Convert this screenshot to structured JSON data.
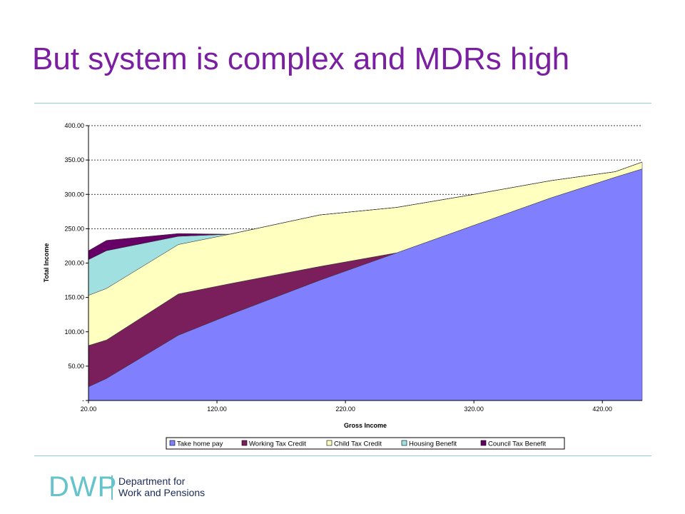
{
  "slide": {
    "title": "But system is complex and MDRs high"
  },
  "logo": {
    "abbr": "DWP",
    "line1": "Department for",
    "line2": "Work and Pensions"
  },
  "chart_data": {
    "type": "area",
    "stacked": true,
    "title": "",
    "xlabel": "Gross Income",
    "ylabel": "Total Income",
    "xlim": [
      20,
      451
    ],
    "ylim": [
      0,
      400
    ],
    "x_ticks": [
      "20.00",
      "120.00",
      "220.00",
      "320.00",
      "420.00"
    ],
    "y_ticks": [
      "-",
      "50.00",
      "100.00",
      "150.00",
      "200.00",
      "250.00",
      "300.00",
      "350.00",
      "400.00"
    ],
    "y_tick_values": [
      0,
      50,
      100,
      150,
      200,
      250,
      300,
      350,
      400
    ],
    "x_tick_values": [
      20,
      120,
      220,
      320,
      420
    ],
    "grid": "horizontal-dashed",
    "legend_position": "bottom",
    "x": [
      20,
      34,
      90,
      130,
      200,
      260,
      320,
      380,
      430,
      451
    ],
    "series": [
      {
        "name": "Take home pay",
        "color": "#8080ff",
        "values": [
          20,
          32,
          95,
          125,
          175,
          215,
          255,
          295,
          325,
          337
        ]
      },
      {
        "name": "Working Tax Credit",
        "color": "#7b1f5c",
        "values": [
          60,
          56,
          60,
          45,
          20,
          0,
          0,
          0,
          0,
          0
        ]
      },
      {
        "name": "Child Tax Credit",
        "color": "#ffffc0",
        "values": [
          73,
          75,
          72,
          72,
          75,
          66,
          45,
          25,
          8,
          10
        ]
      },
      {
        "name": "Housing Benefit",
        "color": "#a0e0e0",
        "values": [
          52,
          55,
          12,
          0,
          0,
          0,
          0,
          0,
          0,
          0
        ]
      },
      {
        "name": "Council Tax Benefit",
        "color": "#660066",
        "values": [
          13,
          15,
          4,
          0,
          0,
          0,
          0,
          0,
          0,
          0
        ]
      }
    ]
  }
}
